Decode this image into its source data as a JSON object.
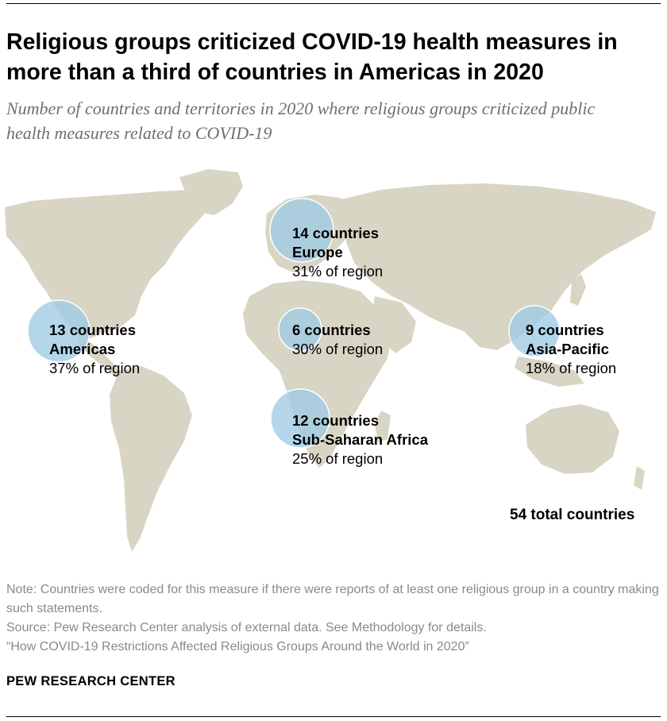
{
  "title": "Religious groups criticized COVID-19 health measures in more than a third of countries in Americas in 2020",
  "subtitle": "Number of countries and territories in 2020 where religious groups criticized public health measures related to COVID-19",
  "colors": {
    "bubble": "#9dcbe6",
    "land": "#d9d5c4",
    "note_text": "#8a8a8a",
    "subtitle_text": "#6f6f6f"
  },
  "map_data": {
    "regions": [
      {
        "region": "Europe",
        "count_label": "14 countries",
        "share_label": "31% of region",
        "countries": 14,
        "percent": 31
      },
      {
        "region": "Americas",
        "count_label": "13 countries",
        "share_label": "37% of region",
        "countries": 13,
        "percent": 37
      },
      {
        "region": "",
        "count_label": "6 countries",
        "share_label": "30% of region",
        "countries": 6,
        "percent": 30
      },
      {
        "region": "Asia-Pacific",
        "count_label": "9 countries",
        "share_label": "18% of region",
        "countries": 9,
        "percent": 18
      },
      {
        "region": "Sub-Saharan Africa",
        "count_label": "12 countries",
        "share_label": "25% of region",
        "countries": 12,
        "percent": 25
      }
    ],
    "total_label": "54 total countries",
    "total": 54
  },
  "notes": {
    "note": "Note: Countries were coded for this measure if there were reports of at least one religious group in a country making such statements.",
    "source": "Source: Pew Research Center analysis of external data. See Methodology for details.",
    "report": "“How COVID-19 Restrictions Affected Religious Groups Around the World in 2020”"
  },
  "brand": "PEW RESEARCH CENTER"
}
